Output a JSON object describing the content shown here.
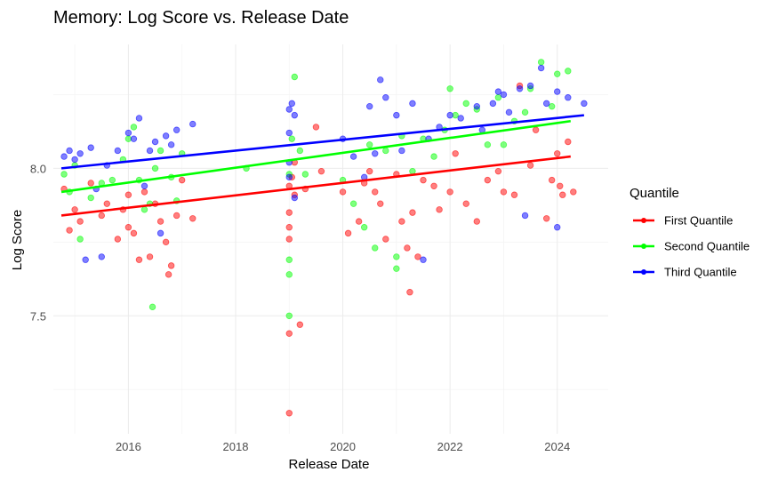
{
  "chart_data": {
    "type": "scatter",
    "title": "Memory: Log Score vs. Release Date",
    "xlabel": "Release Date",
    "ylabel": "Log Score",
    "xlim": [
      2014.6,
      2024.95
    ],
    "ylim": [
      7.1,
      8.42
    ],
    "x_ticks": [
      2016,
      2018,
      2020,
      2022,
      2024
    ],
    "x_minor_ticks": [
      2015,
      2017,
      2019,
      2021,
      2023
    ],
    "y_ticks": [
      7.5,
      8.0
    ],
    "y_minor_ticks": [
      7.25,
      7.75,
      8.25
    ],
    "grid": true,
    "legend": {
      "title": "Quantile",
      "placement": "right"
    },
    "series": [
      {
        "name": "First Quantile",
        "color": "#ff0000",
        "trend": [
          [
            2014.75,
            7.84
          ],
          [
            2024.25,
            8.04
          ]
        ],
        "points": [
          [
            2014.8,
            7.93
          ],
          [
            2014.9,
            7.79
          ],
          [
            2015.0,
            7.86
          ],
          [
            2015.1,
            7.82
          ],
          [
            2015.3,
            7.95
          ],
          [
            2015.5,
            7.84
          ],
          [
            2015.6,
            7.88
          ],
          [
            2015.8,
            7.76
          ],
          [
            2015.9,
            7.86
          ],
          [
            2016.0,
            7.91
          ],
          [
            2016.0,
            7.8
          ],
          [
            2016.1,
            7.78
          ],
          [
            2016.2,
            7.69
          ],
          [
            2016.3,
            7.92
          ],
          [
            2016.4,
            7.7
          ],
          [
            2016.5,
            7.88
          ],
          [
            2016.6,
            7.82
          ],
          [
            2016.7,
            7.75
          ],
          [
            2016.75,
            7.64
          ],
          [
            2016.8,
            7.67
          ],
          [
            2016.9,
            7.84
          ],
          [
            2017.0,
            7.96
          ],
          [
            2017.2,
            7.83
          ],
          [
            2019.0,
            7.94
          ],
          [
            2019.0,
            7.85
          ],
          [
            2019.0,
            7.8
          ],
          [
            2019.0,
            7.76
          ],
          [
            2019.0,
            7.44
          ],
          [
            2019.0,
            7.17
          ],
          [
            2019.05,
            7.97
          ],
          [
            2019.1,
            7.91
          ],
          [
            2019.1,
            8.02
          ],
          [
            2019.2,
            7.47
          ],
          [
            2019.3,
            7.93
          ],
          [
            2019.5,
            8.14
          ],
          [
            2019.6,
            7.99
          ],
          [
            2020.0,
            7.92
          ],
          [
            2020.1,
            7.78
          ],
          [
            2020.3,
            7.82
          ],
          [
            2020.4,
            7.95
          ],
          [
            2020.5,
            7.99
          ],
          [
            2020.6,
            7.92
          ],
          [
            2020.7,
            7.88
          ],
          [
            2020.8,
            7.76
          ],
          [
            2021.0,
            7.98
          ],
          [
            2021.1,
            7.82
          ],
          [
            2021.2,
            7.73
          ],
          [
            2021.25,
            7.58
          ],
          [
            2021.3,
            7.85
          ],
          [
            2021.4,
            7.7
          ],
          [
            2021.5,
            7.96
          ],
          [
            2021.7,
            7.94
          ],
          [
            2021.8,
            7.86
          ],
          [
            2022.0,
            7.92
          ],
          [
            2022.1,
            8.05
          ],
          [
            2022.3,
            7.88
          ],
          [
            2022.5,
            7.82
          ],
          [
            2022.7,
            7.96
          ],
          [
            2022.9,
            7.99
          ],
          [
            2023.0,
            7.92
          ],
          [
            2023.2,
            7.91
          ],
          [
            2023.3,
            8.28
          ],
          [
            2023.5,
            8.01
          ],
          [
            2023.6,
            8.13
          ],
          [
            2023.8,
            7.83
          ],
          [
            2023.9,
            7.96
          ],
          [
            2024.0,
            8.05
          ],
          [
            2024.05,
            7.94
          ],
          [
            2024.1,
            7.91
          ],
          [
            2024.2,
            8.09
          ],
          [
            2024.3,
            7.92
          ]
        ]
      },
      {
        "name": "Second Quantile",
        "color": "#00ff00",
        "trend": [
          [
            2014.75,
            7.92
          ],
          [
            2024.25,
            8.16
          ]
        ],
        "points": [
          [
            2014.8,
            7.98
          ],
          [
            2014.9,
            7.92
          ],
          [
            2015.0,
            8.01
          ],
          [
            2015.1,
            7.76
          ],
          [
            2015.3,
            7.9
          ],
          [
            2015.5,
            7.95
          ],
          [
            2015.7,
            7.96
          ],
          [
            2015.9,
            8.03
          ],
          [
            2016.0,
            8.1
          ],
          [
            2016.1,
            8.14
          ],
          [
            2016.2,
            7.96
          ],
          [
            2016.3,
            7.86
          ],
          [
            2016.4,
            7.88
          ],
          [
            2016.45,
            7.53
          ],
          [
            2016.5,
            8.0
          ],
          [
            2016.6,
            8.06
          ],
          [
            2016.8,
            7.97
          ],
          [
            2016.9,
            7.89
          ],
          [
            2017.0,
            8.05
          ],
          [
            2018.2,
            8.0
          ],
          [
            2019.0,
            7.69
          ],
          [
            2019.0,
            7.64
          ],
          [
            2019.0,
            7.5
          ],
          [
            2019.0,
            7.98
          ],
          [
            2019.05,
            8.1
          ],
          [
            2019.1,
            8.31
          ],
          [
            2019.2,
            8.06
          ],
          [
            2019.3,
            7.98
          ],
          [
            2020.0,
            7.96
          ],
          [
            2020.2,
            7.88
          ],
          [
            2020.4,
            7.8
          ],
          [
            2020.5,
            8.08
          ],
          [
            2020.6,
            7.73
          ],
          [
            2020.8,
            8.06
          ],
          [
            2021.0,
            7.7
          ],
          [
            2021.0,
            7.66
          ],
          [
            2021.1,
            8.11
          ],
          [
            2021.3,
            7.99
          ],
          [
            2021.5,
            8.1
          ],
          [
            2021.7,
            8.04
          ],
          [
            2021.9,
            8.13
          ],
          [
            2022.0,
            8.27
          ],
          [
            2022.1,
            8.18
          ],
          [
            2022.3,
            8.22
          ],
          [
            2022.5,
            8.2
          ],
          [
            2022.7,
            8.08
          ],
          [
            2022.9,
            8.24
          ],
          [
            2023.0,
            8.08
          ],
          [
            2023.2,
            8.16
          ],
          [
            2023.4,
            8.19
          ],
          [
            2023.5,
            8.27
          ],
          [
            2023.7,
            8.36
          ],
          [
            2023.9,
            8.21
          ],
          [
            2024.0,
            8.32
          ],
          [
            2024.2,
            8.33
          ]
        ]
      },
      {
        "name": "Third Quantile",
        "color": "#0000ff",
        "trend": [
          [
            2014.75,
            8.0
          ],
          [
            2024.5,
            8.18
          ]
        ],
        "points": [
          [
            2014.8,
            8.04
          ],
          [
            2014.9,
            8.06
          ],
          [
            2015.0,
            8.03
          ],
          [
            2015.1,
            8.05
          ],
          [
            2015.2,
            7.69
          ],
          [
            2015.3,
            8.07
          ],
          [
            2015.4,
            7.93
          ],
          [
            2015.5,
            7.7
          ],
          [
            2015.6,
            8.01
          ],
          [
            2015.8,
            8.06
          ],
          [
            2016.0,
            8.12
          ],
          [
            2016.1,
            8.1
          ],
          [
            2016.2,
            8.17
          ],
          [
            2016.3,
            7.94
          ],
          [
            2016.4,
            8.06
          ],
          [
            2016.5,
            8.09
          ],
          [
            2016.6,
            7.78
          ],
          [
            2016.7,
            8.11
          ],
          [
            2016.8,
            8.08
          ],
          [
            2016.9,
            8.13
          ],
          [
            2017.2,
            8.15
          ],
          [
            2019.0,
            8.2
          ],
          [
            2019.0,
            8.12
          ],
          [
            2019.0,
            8.02
          ],
          [
            2019.0,
            7.97
          ],
          [
            2019.05,
            8.22
          ],
          [
            2019.1,
            8.18
          ],
          [
            2019.1,
            7.9
          ],
          [
            2020.0,
            8.1
          ],
          [
            2020.2,
            8.04
          ],
          [
            2020.4,
            7.97
          ],
          [
            2020.5,
            8.21
          ],
          [
            2020.6,
            8.05
          ],
          [
            2020.7,
            8.3
          ],
          [
            2020.8,
            8.24
          ],
          [
            2021.0,
            8.18
          ],
          [
            2021.1,
            8.06
          ],
          [
            2021.3,
            8.22
          ],
          [
            2021.5,
            7.69
          ],
          [
            2021.6,
            8.1
          ],
          [
            2021.8,
            8.14
          ],
          [
            2022.0,
            8.18
          ],
          [
            2022.2,
            8.17
          ],
          [
            2022.5,
            8.21
          ],
          [
            2022.6,
            8.13
          ],
          [
            2022.8,
            8.22
          ],
          [
            2022.9,
            8.26
          ],
          [
            2023.0,
            8.25
          ],
          [
            2023.1,
            8.19
          ],
          [
            2023.3,
            8.27
          ],
          [
            2023.4,
            7.84
          ],
          [
            2023.5,
            8.28
          ],
          [
            2023.7,
            8.34
          ],
          [
            2023.8,
            8.22
          ],
          [
            2024.0,
            8.26
          ],
          [
            2024.0,
            7.8
          ],
          [
            2024.2,
            8.24
          ],
          [
            2024.5,
            8.22
          ]
        ]
      }
    ]
  }
}
